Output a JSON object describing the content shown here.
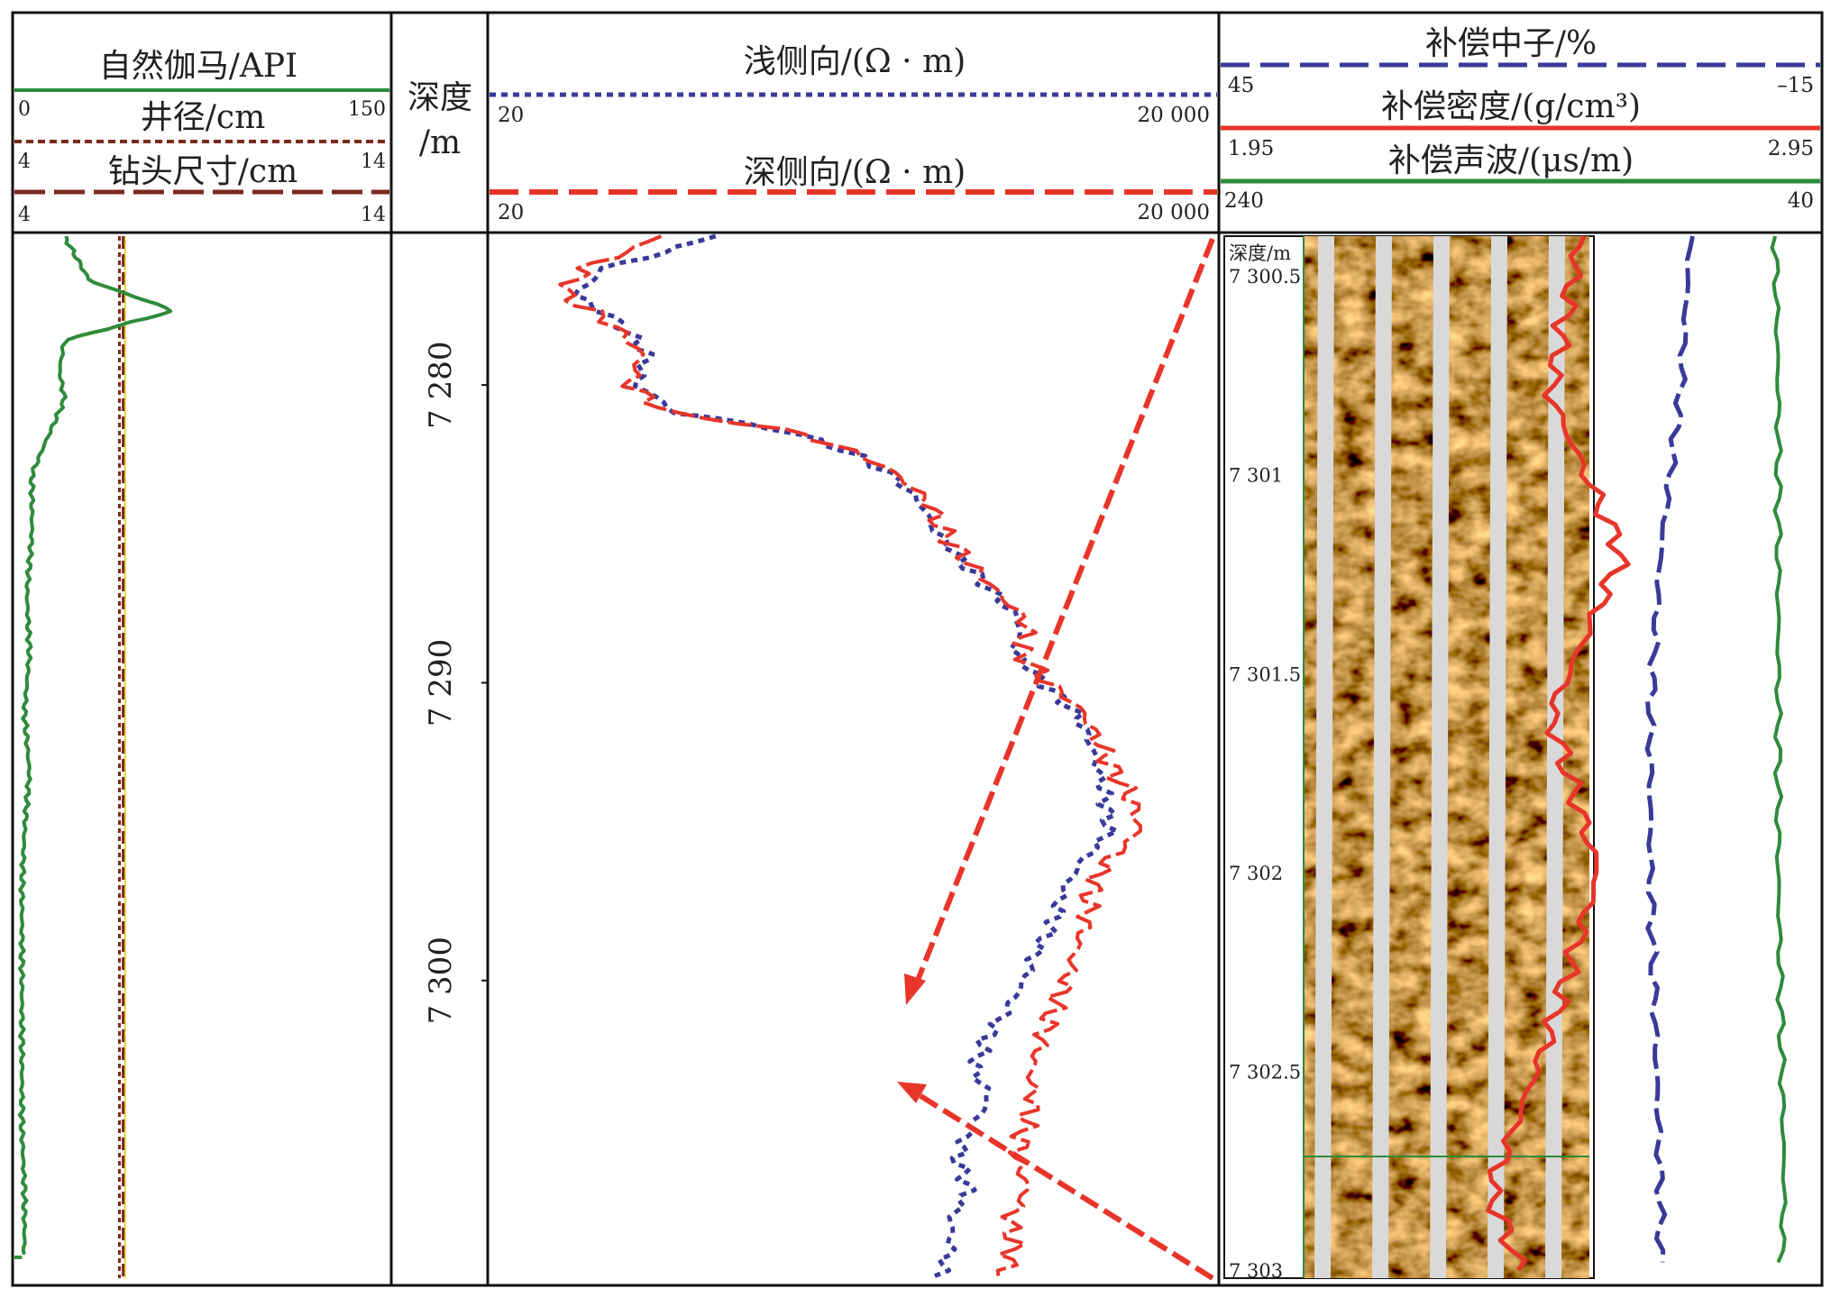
{
  "tracks": {
    "gr": {
      "gamma_label": "自然伽马/API",
      "gamma_min": "0",
      "gamma_max": "150",
      "caliper_label": "井径/cm",
      "caliper_min": "4",
      "caliper_max": "14",
      "bit_label": "钻头尺寸/cm",
      "bit_min": "4",
      "bit_max": "14"
    },
    "depth": {
      "label_line1": "深度",
      "label_line2": "/m",
      "ticks": [
        "7 280",
        "7 290",
        "7 300"
      ]
    },
    "resistivity": {
      "shallow_label": "浅侧向/(Ω · m)",
      "shallow_min": "20",
      "shallow_max": "20 000",
      "deep_label": "深侧向/(Ω · m)",
      "deep_min": "20",
      "deep_max": "20 000"
    },
    "porosity": {
      "neutron_label": "补偿中子/%",
      "neutron_min": "45",
      "neutron_max": "–15",
      "density_label": "补偿密度/(g/cm³)",
      "density_min": "1.95",
      "density_max": "2.95",
      "sonic_label": "补偿声波/(μs/m)",
      "sonic_min": "240",
      "sonic_max": "40"
    },
    "image": {
      "depth_label": "深度/m",
      "ticks": [
        "7 300.5",
        "7 301",
        "7 301.5",
        "7 302",
        "7 302.5",
        "7 303"
      ]
    }
  },
  "colors": {
    "gamma": "#2e8b3a",
    "caliper": "#7a2a1c",
    "bit": "#7a2a1c",
    "shallow": "#3a3a9a",
    "deep": "#e8352a",
    "neutron": "#3a3a9a",
    "density": "#e8352a",
    "sonic": "#2e8b3a",
    "arrow": "#e8352a"
  },
  "chart_data": {
    "type": "line",
    "depth_axis": {
      "unit": "m",
      "range": [
        7275,
        7310
      ],
      "ticks": [
        7280,
        7290,
        7300
      ]
    },
    "series": [
      {
        "name": "自然伽马/API",
        "scale": [
          0,
          150
        ],
        "depth": [
          7275,
          7276.5,
          7277.5,
          7278.5,
          7279.5,
          7280.5,
          7282,
          7283,
          7285,
          7287,
          7289,
          7291,
          7293,
          7295,
          7297,
          7299,
          7301,
          7303,
          7305,
          7307,
          7309,
          7309.3
        ],
        "values": [
          20,
          30,
          64,
          20,
          18,
          20,
          12,
          7,
          7,
          5,
          6,
          4,
          6,
          4,
          3,
          3,
          3,
          3,
          3,
          4,
          4,
          3
        ]
      },
      {
        "name": "井径/cm",
        "scale": [
          4,
          14
        ],
        "depth": [
          7275,
          7310
        ],
        "values": [
          6.8,
          6.8
        ]
      },
      {
        "name": "钻头尺寸/cm",
        "scale": [
          4,
          14
        ],
        "depth": [
          7275,
          7310
        ],
        "values": [
          6.9,
          6.9
        ]
      },
      {
        "name": "浅侧向/(Ω · m)",
        "depth": [
          7275,
          7276,
          7277,
          7278,
          7279,
          7280,
          7281,
          7282,
          7283,
          7284,
          7285,
          7286,
          7287,
          7288,
          7289,
          7290,
          7291,
          7292,
          7293,
          7294,
          7295,
          7296,
          7297,
          7298,
          7299,
          7300,
          7301,
          7302,
          7303,
          7304,
          7305,
          7306,
          7307,
          7308,
          7309,
          7310
        ],
        "values": [
          160,
          60,
          45,
          70,
          90,
          80,
          120,
          500,
          900,
          1200,
          1400,
          1800,
          2400,
          3100,
          2900,
          3800,
          5200,
          6000,
          6500,
          7000,
          7200,
          5500,
          4600,
          4300,
          3600,
          3200,
          2700,
          2200,
          2000,
          2300,
          1900,
          1700,
          1900,
          1600,
          1600,
          1400
        ]
      },
      {
        "name": "深侧向/(Ω · m)",
        "depth": [
          7275,
          7276,
          7277,
          7278,
          7279,
          7280,
          7281,
          7282,
          7283,
          7284,
          7285,
          7286,
          7287,
          7288,
          7289,
          7290,
          7291,
          7292,
          7293,
          7294,
          7295,
          7296,
          7297,
          7298,
          7299,
          7300,
          7301,
          7302,
          7303,
          7304,
          7305,
          7306,
          7307,
          7308,
          7309,
          7310
        ],
        "values": [
          100,
          50,
          40,
          65,
          85,
          75,
          110,
          520,
          950,
          1300,
          1500,
          1900,
          2500,
          3300,
          3100,
          4000,
          5600,
          6500,
          7500,
          9000,
          9500,
          7000,
          6000,
          5800,
          5200,
          4800,
          4200,
          3800,
          3400,
          3500,
          3200,
          3000,
          3300,
          2800,
          2900,
          2600
        ]
      },
      {
        "name": "补偿中子/%",
        "scale": [
          45,
          -15
        ],
        "depth": [
          7300.4,
          7300.8,
          7301.2,
          7301.6,
          7302,
          7302.4,
          7302.8,
          7303
        ],
        "values": [
          -2,
          -1,
          1,
          2,
          2,
          1.5,
          1,
          1
        ]
      },
      {
        "name": "补偿密度/(g/cm³)",
        "scale": [
          1.95,
          2.95
        ],
        "depth": [
          7300.4,
          7300.8,
          7301.2,
          7301.6,
          7302,
          7302.4,
          7302.8,
          7303
        ],
        "values": [
          2.55,
          2.5,
          2.62,
          2.5,
          2.58,
          2.5,
          2.4,
          2.45
        ]
      },
      {
        "name": "补偿声波/(μs/m)",
        "scale": [
          240,
          40
        ],
        "depth": [
          7300.4,
          7300.8,
          7301.2,
          7301.6,
          7302,
          7302.4,
          7302.8,
          7303
        ],
        "values": [
          55,
          54,
          54,
          54,
          54,
          53,
          52,
          53
        ]
      }
    ]
  }
}
